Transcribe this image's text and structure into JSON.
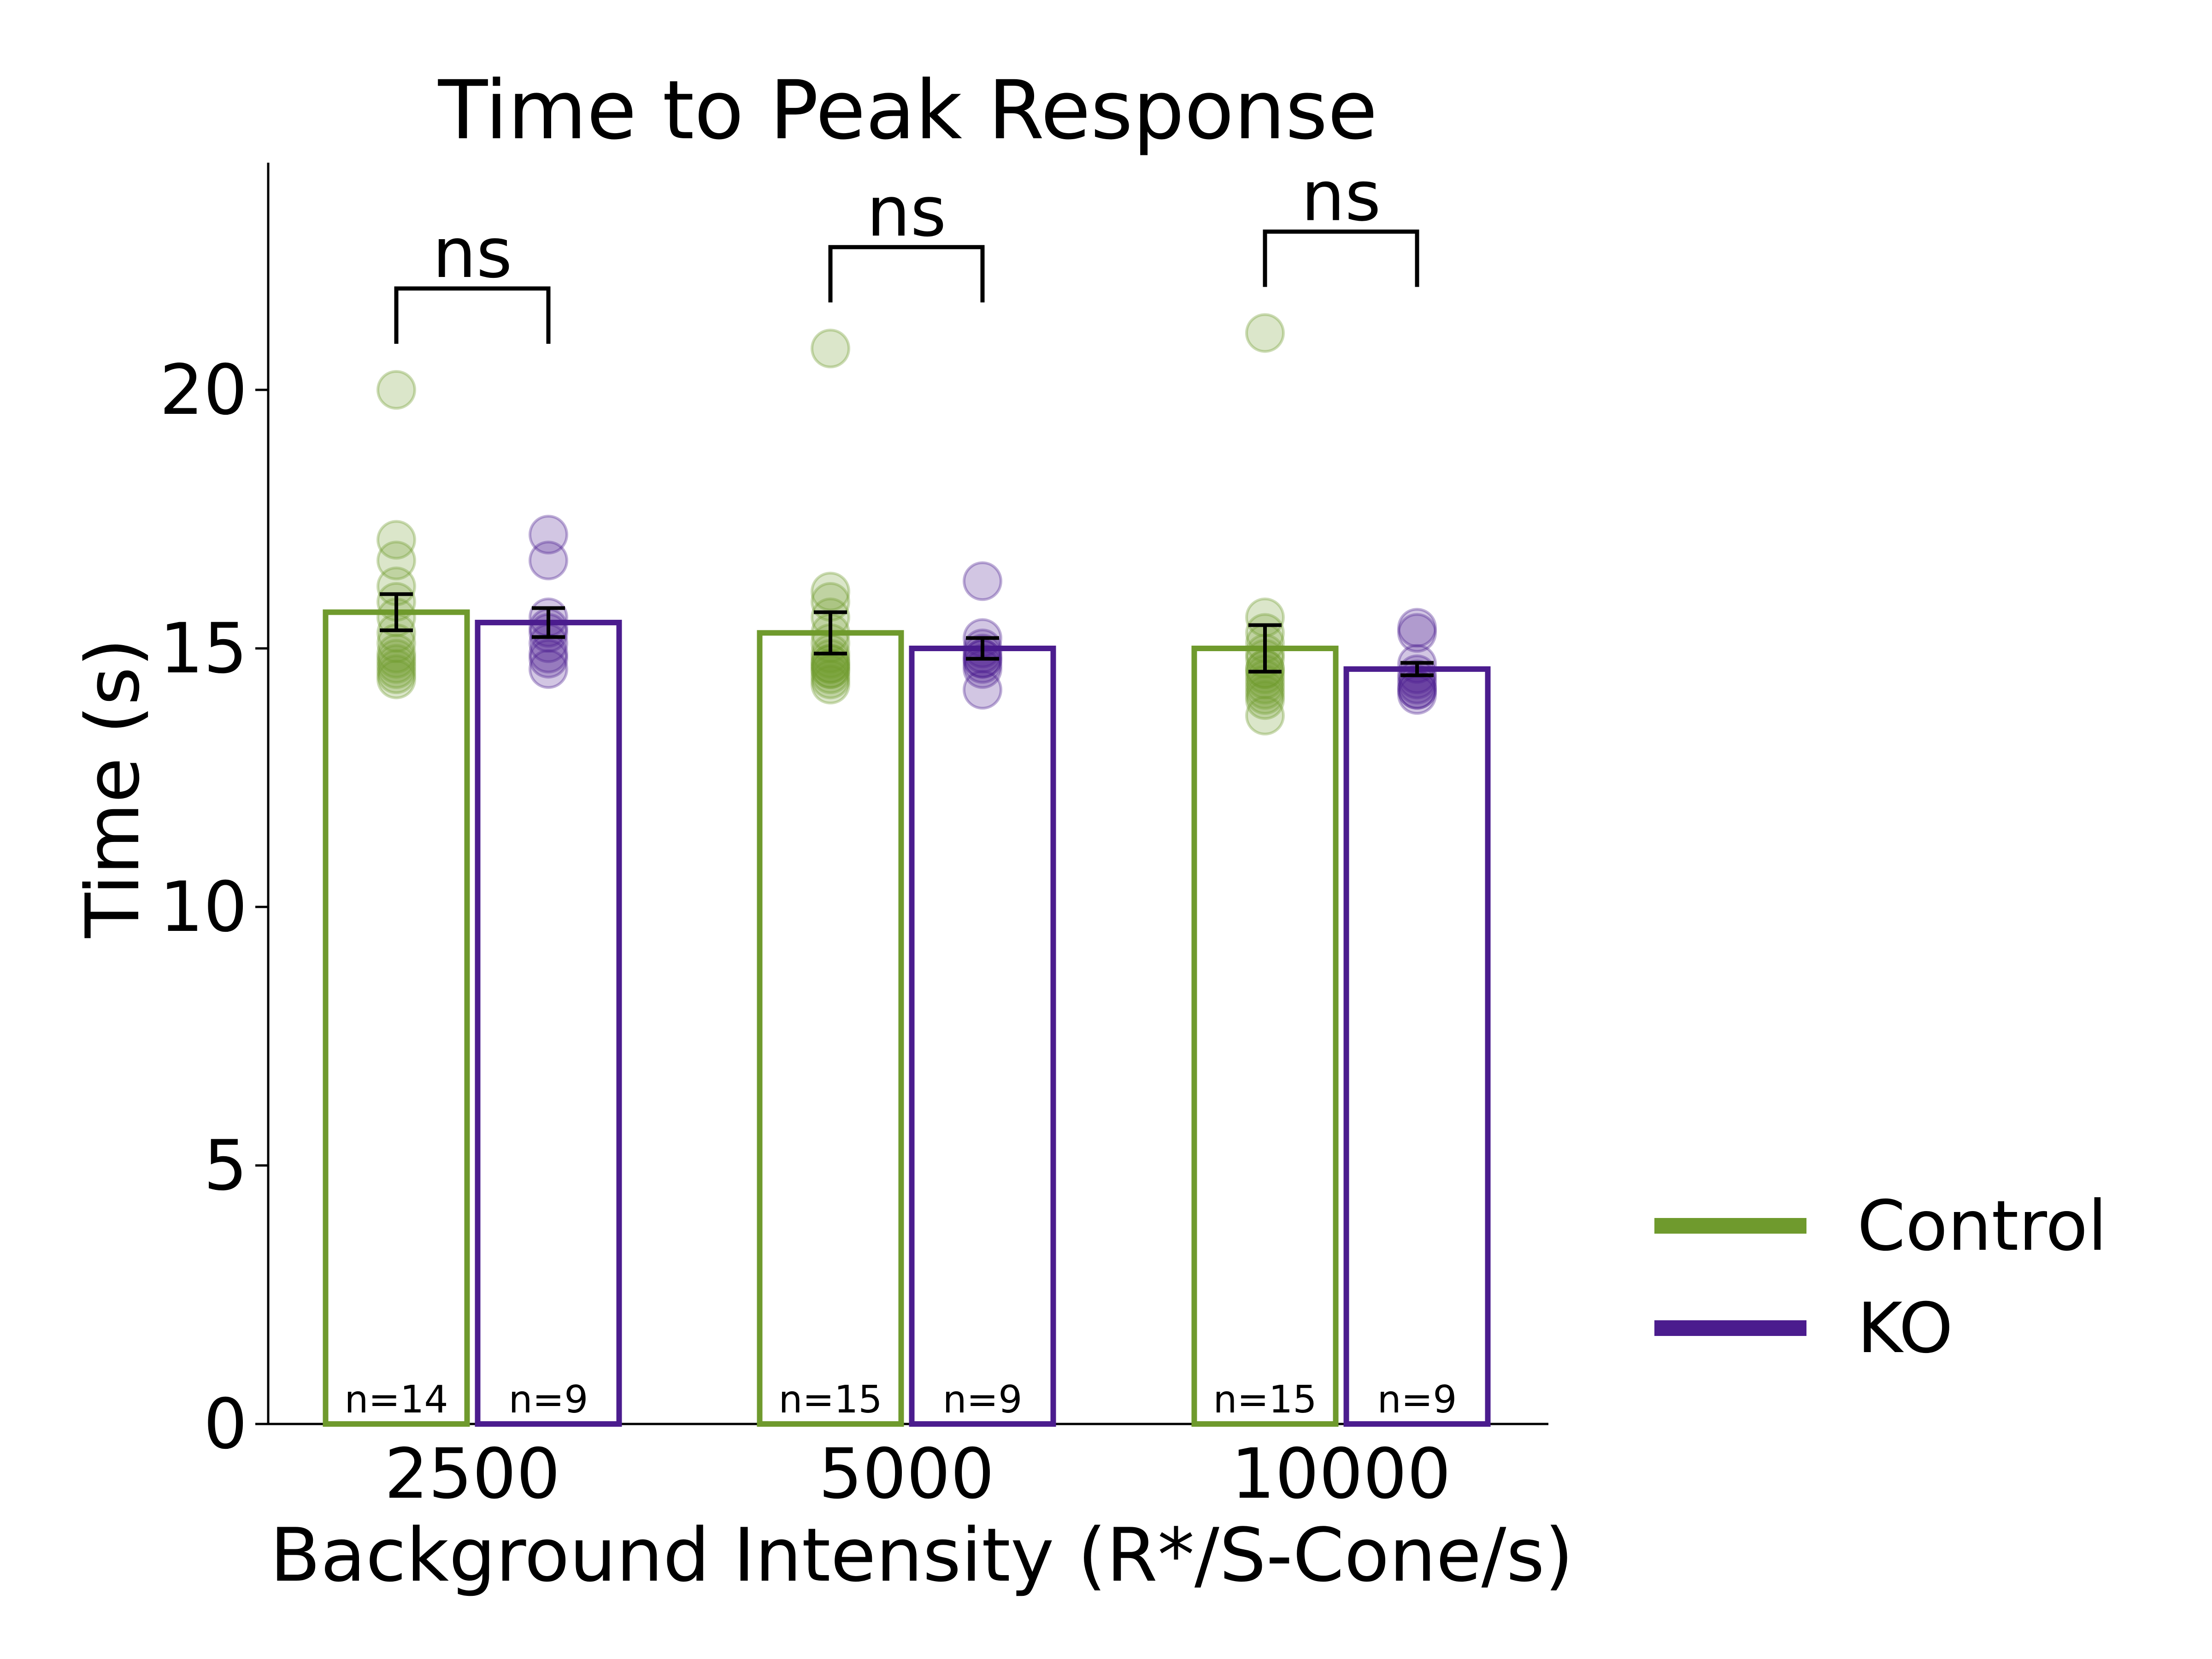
{
  "chart_data": {
    "type": "bar",
    "title": "Time to Peak Response",
    "xlabel": "Background Intensity (R*/S-Cone/s)",
    "ylabel": "Time (s)",
    "ylim": [
      0,
      24.4
    ],
    "yticks": [
      0,
      5,
      10,
      15,
      20
    ],
    "grid": false,
    "legend_position": "right",
    "categories": [
      "2500",
      "5000",
      "10000"
    ],
    "series": [
      {
        "name": "Control",
        "color": "#6f9a2d",
        "values": [
          15.7,
          15.3,
          15.0
        ],
        "errors": [
          0.35,
          0.4,
          0.45
        ],
        "n_labels": [
          "n=14",
          "n=15",
          "n=15"
        ],
        "points": [
          [
            20.0,
            17.1,
            16.7,
            16.2,
            15.9,
            15.6,
            15.3,
            15.1,
            14.9,
            14.8,
            14.7,
            14.6,
            14.5,
            14.4
          ],
          [
            20.8,
            16.1,
            15.9,
            15.6,
            15.3,
            15.1,
            14.9,
            14.8,
            14.7,
            14.6,
            14.6,
            14.5,
            14.4,
            14.3,
            14.7
          ],
          [
            21.1,
            15.6,
            15.3,
            15.1,
            14.9,
            14.8,
            14.6,
            14.5,
            14.4,
            14.3,
            14.2,
            14.1,
            14.0,
            13.7,
            14.6
          ]
        ]
      },
      {
        "name": "KO",
        "color": "#4b1c8e",
        "values": [
          15.5,
          15.0,
          14.6
        ],
        "errors": [
          0.28,
          0.2,
          0.12
        ],
        "n_labels": [
          "n=9",
          "n=9",
          "n=9"
        ],
        "points": [
          [
            17.2,
            16.7,
            15.6,
            15.4,
            15.3,
            15.1,
            14.9,
            14.8,
            14.6
          ],
          [
            16.3,
            15.2,
            15.0,
            14.9,
            14.8,
            14.8,
            14.7,
            14.6,
            14.2
          ],
          [
            15.4,
            15.3,
            14.7,
            14.5,
            14.4,
            14.3,
            14.2,
            14.2,
            14.1
          ]
        ]
      }
    ],
    "significance": [
      "ns",
      "ns",
      "ns"
    ]
  }
}
